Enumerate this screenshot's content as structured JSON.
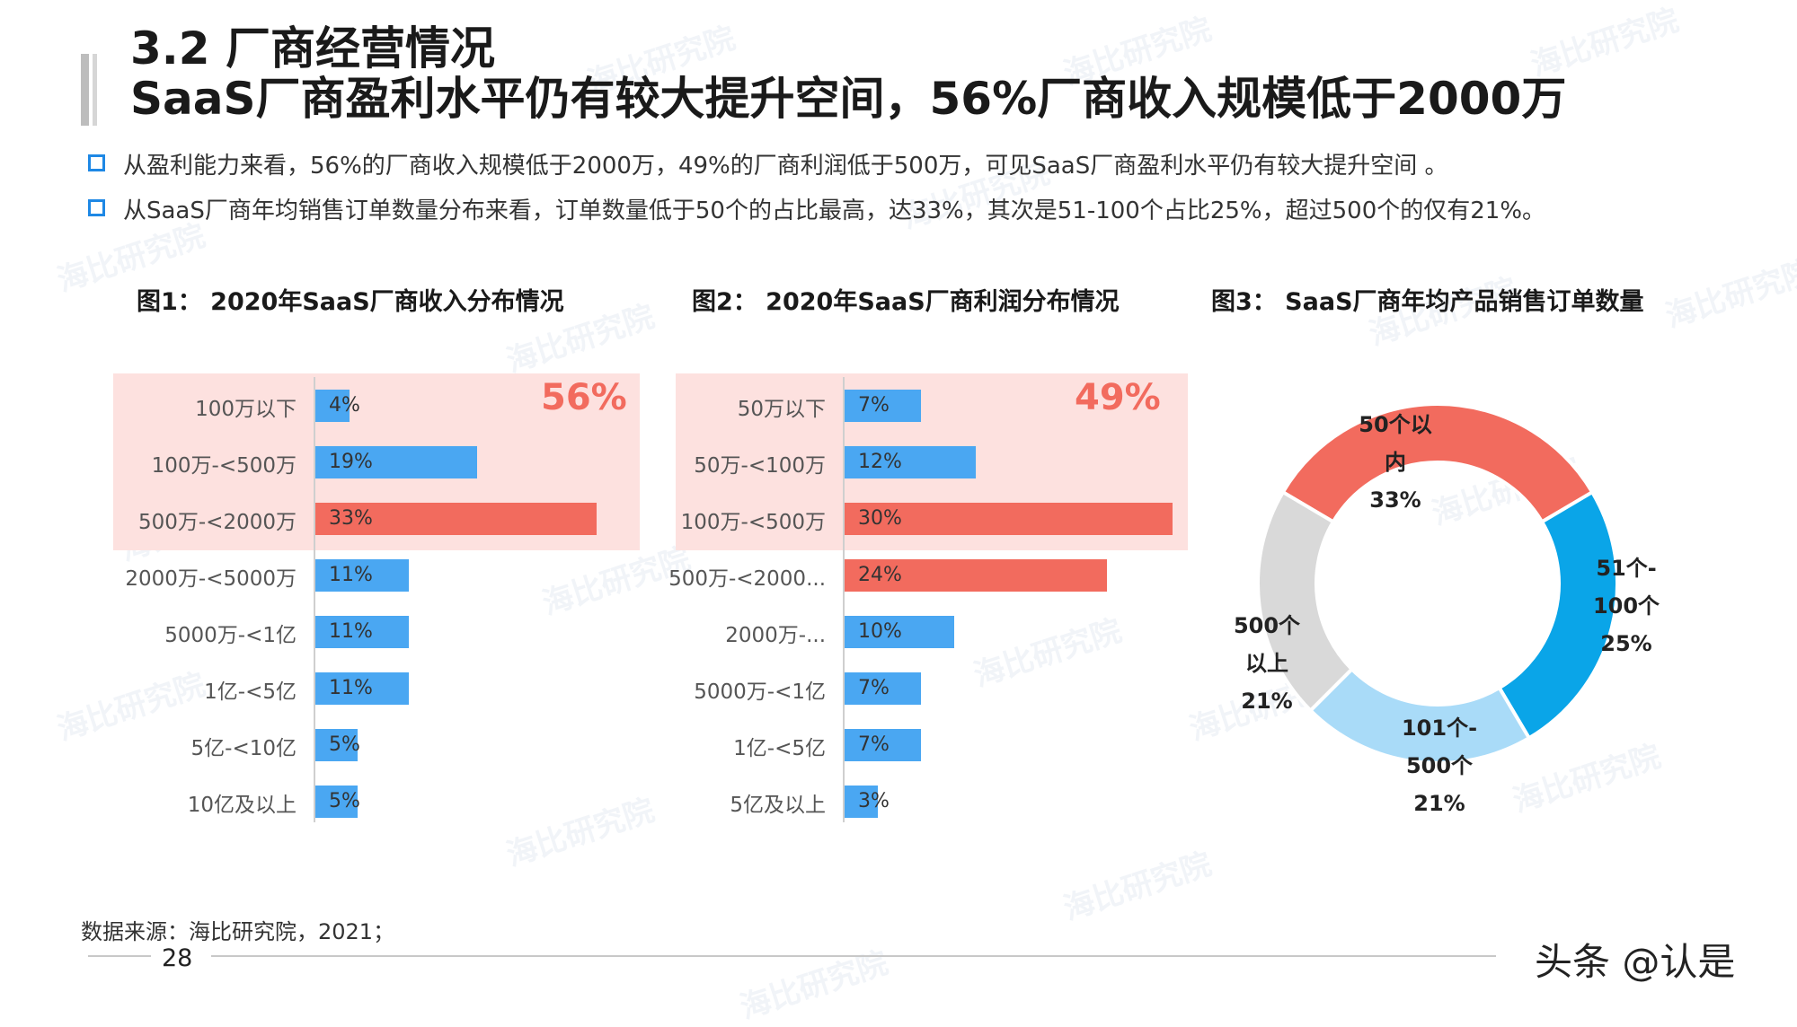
{
  "header": {
    "section_title": "3.2 厂商经营情况",
    "headline": "SaaS厂商盈利水平仍有较大提升空间，56%厂商收入规模低于2000万"
  },
  "bullets": [
    "从盈利能力来看，56%的厂商收入规模低于2000万，49%的厂商利润低于500万，可见SaaS厂商盈利水平仍有较大提升空间 。",
    "从SaaS厂商年均销售订单数量分布来看，订单数量低于50个的占比最高，达33%，其次是51-100个占比25%，超过500个的仅有21%。"
  ],
  "colors": {
    "accent": "#f26b5e",
    "bar_blue": "#4aa7f2",
    "highlight_bg": "#fde1df",
    "bullet_blue": "#1e88e5"
  },
  "chart_data": [
    {
      "type": "bar",
      "orientation": "horizontal",
      "title": "图1： 2020年SaaS厂商收入分布情况",
      "categories": [
        "100万以下",
        "100万-<500万",
        "500万-<2000万",
        "2000万-<5000万",
        "5000万-<1亿",
        "1亿-<5亿",
        "5亿-<10亿",
        "10亿及以上"
      ],
      "values": [
        4,
        19,
        33,
        11,
        11,
        11,
        5,
        5
      ],
      "value_labels": [
        "4%",
        "19%",
        "33%",
        "11%",
        "11%",
        "11%",
        "5%",
        "5%"
      ],
      "max_value": 33,
      "highlight_rows": 3,
      "highlight_label": "56%",
      "accent_rows": [
        2
      ]
    },
    {
      "type": "bar",
      "orientation": "horizontal",
      "title": "图2： 2020年SaaS厂商利润分布情况",
      "categories": [
        "50万以下",
        "50万-<100万",
        "100万-<500万",
        "500万-<2000...",
        "2000万-...",
        "5000万-<1亿",
        "1亿-<5亿",
        "5亿及以上"
      ],
      "values": [
        7,
        12,
        30,
        24,
        10,
        7,
        7,
        3
      ],
      "value_labels": [
        "7%",
        "12%",
        "30%",
        "24%",
        "10%",
        "7%",
        "7%",
        "3%"
      ],
      "max_value": 30,
      "highlight_rows": 3,
      "highlight_label": "49%",
      "accent_rows": [
        2,
        3
      ]
    },
    {
      "type": "pie",
      "donut": true,
      "title": "图3： SaaS厂商年均产品销售订单数量",
      "slices": [
        {
          "label": [
            "50个以",
            "内",
            "33%"
          ],
          "value": 33,
          "color": "#f26b5e"
        },
        {
          "label": [
            "51个-",
            "100个",
            "25%"
          ],
          "value": 25,
          "color": "#0aa5e8"
        },
        {
          "label": [
            "101个-",
            "500个",
            "21%"
          ],
          "value": 21,
          "color": "#a9dbf8"
        },
        {
          "label": [
            "500个",
            "以上",
            "21%"
          ],
          "value": 21,
          "color": "#d9d9d9"
        }
      ]
    }
  ],
  "footer": {
    "source": "数据来源：海比研究院，2021；",
    "page_number": "28",
    "credit": "头条 @认是"
  },
  "watermark": "海比研究院"
}
